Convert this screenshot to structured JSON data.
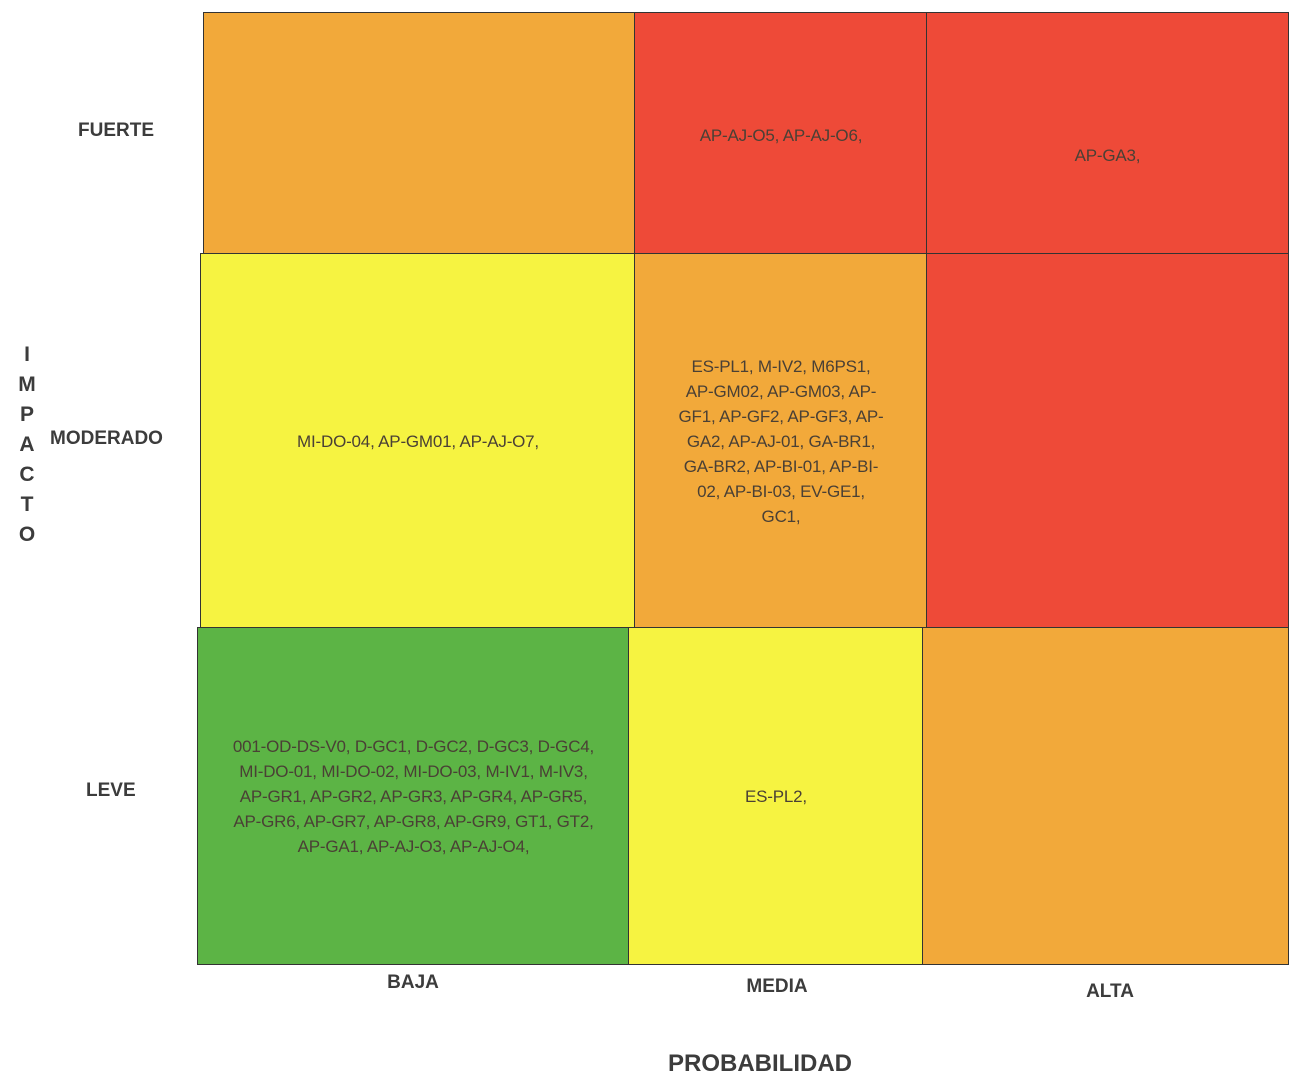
{
  "y_axis": {
    "title": "IMPACTO",
    "labels": [
      "FUERTE",
      "MODERADO",
      "LEVE"
    ]
  },
  "x_axis": {
    "title": "PROBABILIDAD",
    "labels": [
      "BAJA",
      "MEDIA",
      "ALTA"
    ]
  },
  "colors": {
    "orange": "#f2a93a",
    "red": "#ee4a38",
    "yellow": "#f6f341",
    "green": "#5cb445"
  },
  "cells": {
    "fuerte_baja": {
      "text": "",
      "color": "orange"
    },
    "fuerte_media": {
      "text": "AP-AJ-O5, AP-AJ-O6,",
      "color": "red"
    },
    "fuerte_alta": {
      "text": "AP-GA3,",
      "color": "red"
    },
    "moderado_baja": {
      "text": "MI-DO-04, AP-GM01, AP-AJ-O7,",
      "color": "yellow"
    },
    "moderado_media": {
      "text": "ES-PL1, M-IV2, M6PS1, AP-GM02, AP-GM03, AP-GF1, AP-GF2, AP-GF3, AP-GA2, AP-AJ-01, GA-BR1, GA-BR2, AP-BI-01, AP-BI-02, AP-BI-03, EV-GE1, GC1,",
      "color": "orange"
    },
    "moderado_alta": {
      "text": "",
      "color": "red"
    },
    "leve_baja": {
      "text": "001-OD-DS-V0, D-GC1, D-GC2, D-GC3, D-GC4, MI-DO-01, MI-DO-02, MI-DO-03, M-IV1, M-IV3, AP-GR1, AP-GR2, AP-GR3, AP-GR4, AP-GR5, AP-GR6, AP-GR7, AP-GR8, AP-GR9, GT1, GT2, AP-GA1, AP-AJ-O3, AP-AJ-O4,",
      "color": "green"
    },
    "leve_media": {
      "text": "ES-PL2,",
      "color": "yellow"
    },
    "leve_alta": {
      "text": "",
      "color": "orange"
    }
  }
}
